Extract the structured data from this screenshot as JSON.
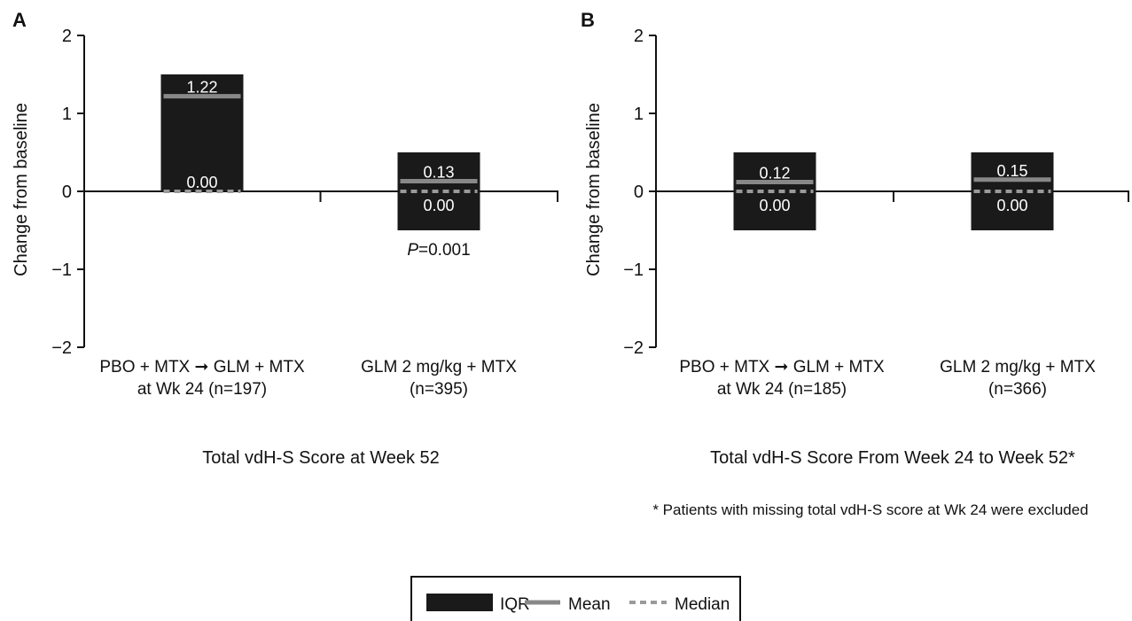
{
  "colors": {
    "iqr": "#1a1a1a",
    "mean": "#888888",
    "median": "#9a9a9a",
    "axis": "#111111"
  },
  "chart_data": [
    {
      "type": "box",
      "panel": "A",
      "title": "Total vdH-S Score at Week 52",
      "ylabel": "Change from baseline",
      "ylim": [
        -2,
        2
      ],
      "yticks": [
        2,
        1,
        0,
        -1,
        -2
      ],
      "ytick_labels": [
        "2",
        "1",
        "0",
        "−1",
        "−2"
      ],
      "categories": [
        {
          "line1": "PBO + MTX ➞ GLM + MTX",
          "line2": "at Wk 24 (n=197)"
        },
        {
          "line1": "GLM 2 mg/kg + MTX",
          "line2": "(n=395)"
        }
      ],
      "groups": [
        {
          "q1": 0.0,
          "q3": 1.5,
          "mean": 1.22,
          "median": 0.0,
          "mean_label": "1.22",
          "median_label": "0.00"
        },
        {
          "q1": -0.5,
          "q3": 0.5,
          "mean": 0.13,
          "median": 0.0,
          "mean_label": "0.13",
          "median_label": "0.00",
          "annotation_italic": "P",
          "annotation_rest": "=0.001"
        }
      ],
      "footnote": ""
    },
    {
      "type": "box",
      "panel": "B",
      "title": "Total vdH-S Score From Week 24 to Week 52*",
      "ylabel": "Change from baseline",
      "ylim": [
        -2,
        2
      ],
      "yticks": [
        2,
        1,
        0,
        -1,
        -2
      ],
      "ytick_labels": [
        "2",
        "1",
        "0",
        "−1",
        "−2"
      ],
      "categories": [
        {
          "line1": "PBO + MTX ➞ GLM + MTX",
          "line2": "at Wk 24 (n=185)"
        },
        {
          "line1": "GLM 2 mg/kg + MTX",
          "line2": "(n=366)"
        }
      ],
      "groups": [
        {
          "q1": -0.5,
          "q3": 0.5,
          "mean": 0.12,
          "median": 0.0,
          "mean_label": "0.12",
          "median_label": "0.00"
        },
        {
          "q1": -0.5,
          "q3": 0.5,
          "mean": 0.15,
          "median": 0.0,
          "mean_label": "0.15",
          "median_label": "0.00"
        }
      ],
      "footnote": "* Patients with missing total vdH-S score at Wk 24 were excluded"
    }
  ],
  "legend": {
    "items": [
      {
        "key": "iqr",
        "label": "IQR"
      },
      {
        "key": "mean",
        "label": "Mean"
      },
      {
        "key": "median",
        "label": "Median"
      }
    ]
  }
}
